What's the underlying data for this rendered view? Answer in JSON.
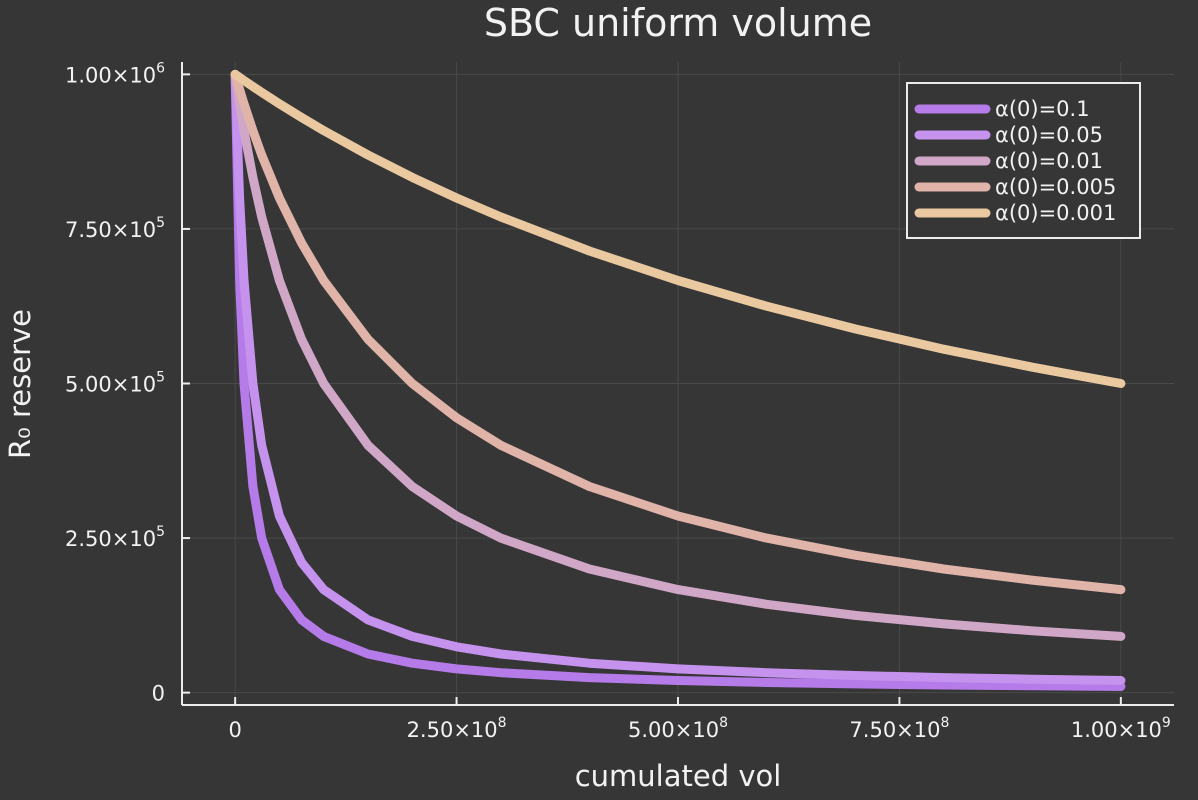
{
  "chart_data": {
    "type": "line",
    "title": "SBC uniform volume",
    "xlabel": "cumulated vol",
    "ylabel": "R₀ reserve",
    "xlim": [
      -60000000,
      1060000000
    ],
    "ylim": [
      -20000,
      1020000
    ],
    "x_ticks": [
      {
        "value": 0,
        "mantissa": "0",
        "exponent": ""
      },
      {
        "value": 250000000,
        "mantissa": "2.50×10",
        "exponent": "8"
      },
      {
        "value": 500000000,
        "mantissa": "5.00×10",
        "exponent": "8"
      },
      {
        "value": 750000000,
        "mantissa": "7.50×10",
        "exponent": "8"
      },
      {
        "value": 1000000000,
        "mantissa": "1.00×10",
        "exponent": "9"
      }
    ],
    "y_ticks": [
      {
        "value": 0,
        "mantissa": "0",
        "exponent": ""
      },
      {
        "value": 250000,
        "mantissa": "2.50×10",
        "exponent": "5"
      },
      {
        "value": 500000,
        "mantissa": "5.00×10",
        "exponent": "5"
      },
      {
        "value": 750000,
        "mantissa": "7.50×10",
        "exponent": "5"
      },
      {
        "value": 1000000,
        "mantissa": "1.00×10",
        "exponent": "6"
      }
    ],
    "grid": true,
    "legend_position": "top-right",
    "x": [
      0,
      5000000,
      10000000,
      20000000,
      30000000,
      50000000,
      75000000,
      100000000,
      150000000,
      200000000,
      250000000,
      300000000,
      400000000,
      500000000,
      600000000,
      700000000,
      800000000,
      900000000,
      1000000000
    ],
    "series": [
      {
        "name": "α(0)=0.1",
        "color": "#b57be8",
        "values": [
          1000000,
          666667,
          500000,
          333333,
          250000,
          166667,
          117647,
          90909,
          62500,
          47619,
          38462,
          32258,
          24390,
          19608,
          16393,
          14085,
          12346,
          10989,
          9901
        ]
      },
      {
        "name": "α(0)=0.05",
        "color": "#c592ee",
        "values": [
          1000000,
          800000,
          666667,
          500000,
          400000,
          285714,
          210526,
          166667,
          117647,
          90909,
          74074,
          62500,
          47619,
          38462,
          32258,
          27778,
          24390,
          21739,
          19608
        ]
      },
      {
        "name": "α(0)=0.01",
        "color": "#d1a7c7",
        "values": [
          1000000,
          952381,
          909091,
          833333,
          769231,
          666667,
          571429,
          500000,
          400000,
          333333,
          285714,
          250000,
          200000,
          166667,
          142857,
          125000,
          111111,
          100000,
          90909
        ]
      },
      {
        "name": "α(0)=0.005",
        "color": "#e0b4a8",
        "values": [
          1000000,
          975610,
          952381,
          909091,
          869565,
          800000,
          727273,
          666667,
          571429,
          500000,
          444444,
          400000,
          333333,
          285714,
          250000,
          222222,
          200000,
          181818,
          166667
        ]
      },
      {
        "name": "α(0)=0.001",
        "color": "#eac9a0",
        "values": [
          1000000,
          995025,
          990099,
          980392,
          970874,
          952381,
          930233,
          909091,
          869565,
          833333,
          800000,
          769231,
          714286,
          666667,
          625000,
          588235,
          555556,
          526316,
          500000
        ]
      }
    ]
  }
}
